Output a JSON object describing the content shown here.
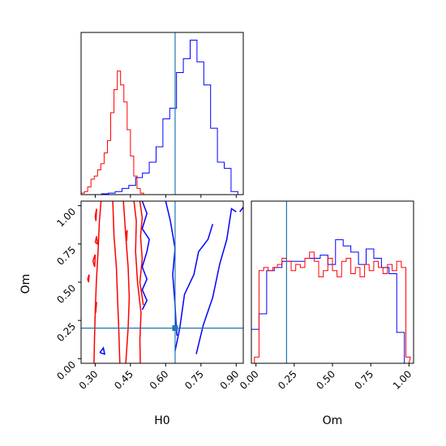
{
  "chart_data": {
    "type": "corner",
    "parameters": [
      "H0",
      "Om"
    ],
    "truths": {
      "H0": 0.64,
      "Om": 0.2
    },
    "colors": {
      "series_a": "#ff0000",
      "series_b": "#0000ff",
      "truth": "#1f77b4"
    },
    "panels": [
      {
        "id": "h0-hist",
        "type": "histogram",
        "xlim": [
          0.24,
          0.93
        ],
        "series": [
          {
            "color": "#ff0000",
            "x": [
              0.24,
              0.254,
              0.268,
              0.282,
              0.296,
              0.31,
              0.324,
              0.338,
              0.352,
              0.366,
              0.38,
              0.394,
              0.408,
              0.422,
              0.436,
              0.45,
              0.464,
              0.478,
              0.492
            ],
            "heights": [
              0.01,
              0.02,
              0.05,
              0.1,
              0.12,
              0.16,
              0.2,
              0.27,
              0.35,
              0.53,
              0.68,
              0.8,
              0.71,
              0.6,
              0.42,
              0.25,
              0.12,
              0.04,
              0.01
            ]
          },
          {
            "color": "#0000ff",
            "x": [
              0.327,
              0.356,
              0.385,
              0.414,
              0.443,
              0.472,
              0.501,
              0.53,
              0.559,
              0.588,
              0.617,
              0.646,
              0.675,
              0.704,
              0.733,
              0.762,
              0.791,
              0.82,
              0.849,
              0.878
            ],
            "heights": [
              0.005,
              0.01,
              0.02,
              0.04,
              0.06,
              0.11,
              0.14,
              0.21,
              0.31,
              0.49,
              0.56,
              0.79,
              0.88,
              1.0,
              0.86,
              0.71,
              0.43,
              0.21,
              0.17,
              0.02
            ]
          }
        ]
      },
      {
        "id": "om-hist",
        "type": "histogram",
        "xlim": [
          -0.03,
          1.03
        ],
        "series": [
          {
            "color": "#0000ff",
            "x": [
              -0.03,
              0.02,
              0.07,
              0.12,
              0.17,
              0.22,
              0.27,
              0.32,
              0.37,
              0.42,
              0.47,
              0.52,
              0.57,
              0.62,
              0.67,
              0.72,
              0.77,
              0.82,
              0.87,
              0.92,
              0.97
            ],
            "heights": [
              0.22,
              0.32,
              0.6,
              0.62,
              0.66,
              0.66,
              0.66,
              0.68,
              0.68,
              0.7,
              0.64,
              0.8,
              0.76,
              0.72,
              0.64,
              0.74,
              0.68,
              0.62,
              0.58,
              0.2
            ]
          },
          {
            "color": "#ff0000",
            "x": [
              -0.01,
              0.02,
              0.05,
              0.08,
              0.11,
              0.14,
              0.17,
              0.2,
              0.23,
              0.26,
              0.29,
              0.32,
              0.35,
              0.38,
              0.41,
              0.44,
              0.47,
              0.5,
              0.53,
              0.56,
              0.59,
              0.62,
              0.65,
              0.68,
              0.71,
              0.74,
              0.77,
              0.8,
              0.83,
              0.86,
              0.89,
              0.92,
              0.95,
              0.98,
              1.0
            ],
            "heights": [
              0.04,
              0.6,
              0.62,
              0.6,
              0.62,
              0.64,
              0.68,
              0.66,
              0.6,
              0.64,
              0.62,
              0.68,
              0.72,
              0.66,
              0.56,
              0.6,
              0.68,
              0.6,
              0.56,
              0.66,
              0.68,
              0.58,
              0.62,
              0.56,
              0.64,
              0.6,
              0.66,
              0.62,
              0.58,
              0.64,
              0.6,
              0.66,
              0.62,
              0.04
            ]
          }
        ]
      },
      {
        "id": "joint",
        "type": "contour",
        "xlim": [
          0.24,
          0.93
        ],
        "ylim": [
          -0.03,
          1.03
        ],
        "contours": [
          {
            "color": "#ff0000",
            "points": [
              [
                0.325,
                1.03
              ],
              [
                0.318,
                0.9
              ],
              [
                0.312,
                0.7
              ],
              [
                0.305,
                0.5
              ],
              [
                0.3,
                0.3
              ],
              [
                0.297,
                0.12
              ],
              [
                0.295,
                -0.03
              ]
            ]
          },
          {
            "color": "#ff0000",
            "points": [
              [
                0.375,
                1.03
              ],
              [
                0.38,
                0.8
              ],
              [
                0.39,
                0.6
              ],
              [
                0.395,
                0.4
              ],
              [
                0.4,
                0.2
              ],
              [
                0.405,
                -0.03
              ]
            ]
          },
          {
            "color": "#ff0000",
            "points": [
              [
                0.42,
                1.03
              ],
              [
                0.43,
                0.8
              ],
              [
                0.44,
                0.6
              ],
              [
                0.445,
                0.4
              ],
              [
                0.44,
                0.2
              ],
              [
                0.43,
                -0.03
              ]
            ]
          },
          {
            "color": "#ff0000",
            "points": [
              [
                0.465,
                1.03
              ],
              [
                0.475,
                0.9
              ],
              [
                0.472,
                0.7
              ],
              [
                0.48,
                0.5
              ],
              [
                0.495,
                0.3
              ],
              [
                0.49,
                0.12
              ],
              [
                0.492,
                -0.03
              ]
            ]
          },
          {
            "color": "#ff0000",
            "points": [
              [
                0.49,
                1.03
              ],
              [
                0.5,
                0.92
              ],
              [
                0.493,
                0.8
              ],
              [
                0.5,
                0.65
              ],
              [
                0.49,
                0.5
              ],
              [
                0.505,
                0.35
              ]
            ]
          },
          {
            "color": "#ff0000",
            "points": [
              [
                0.268,
                0.52
              ],
              [
                0.274,
                0.55
              ],
              [
                0.272,
                0.5
              ],
              [
                0.268,
                0.52
              ]
            ]
          },
          {
            "color": "#ff0000",
            "points": [
              [
                0.3,
                0.76
              ],
              [
                0.306,
                0.8
              ],
              [
                0.31,
                0.75
              ],
              [
                0.3,
                0.76
              ]
            ]
          },
          {
            "color": "#ff0000",
            "points": [
              [
                0.29,
                0.64
              ],
              [
                0.3,
                0.68
              ],
              [
                0.298,
                0.6
              ],
              [
                0.29,
                0.64
              ]
            ]
          },
          {
            "color": "#ff0000",
            "points": [
              [
                0.3,
                0.33
              ],
              [
                0.306,
                0.37
              ],
              [
                0.302,
                0.3
              ],
              [
                0.3,
                0.33
              ]
            ]
          },
          {
            "color": "#ff0000",
            "points": [
              [
                0.3,
                0.93
              ],
              [
                0.306,
                0.98
              ],
              [
                0.303,
                0.9
              ],
              [
                0.3,
                0.93
              ]
            ]
          },
          {
            "color": "#ff0000",
            "points": [
              [
                0.43,
                0.8
              ],
              [
                0.436,
                0.84
              ],
              [
                0.434,
                0.77
              ],
              [
                0.43,
                0.8
              ]
            ]
          },
          {
            "color": "#0000ff",
            "points": [
              [
                0.5,
                1.03
              ],
              [
                0.52,
                0.95
              ],
              [
                0.5,
                0.85
              ],
              [
                0.53,
                0.78
              ],
              [
                0.52,
                0.7
              ],
              [
                0.5,
                0.6
              ],
              [
                0.52,
                0.52
              ],
              [
                0.5,
                0.45
              ],
              [
                0.52,
                0.38
              ],
              [
                0.5,
                0.32
              ]
            ]
          },
          {
            "color": "#0000ff",
            "points": [
              [
                0.6,
                1.03
              ],
              [
                0.62,
                0.9
              ],
              [
                0.64,
                0.72
              ],
              [
                0.63,
                0.55
              ],
              [
                0.64,
                0.35
              ],
              [
                0.645,
                0.2
              ],
              [
                0.648,
                0.15
              ]
            ]
          },
          {
            "color": "#0000ff",
            "points": [
              [
                0.64,
                0.05
              ],
              [
                0.66,
                0.2
              ],
              [
                0.68,
                0.42
              ],
              [
                0.72,
                0.55
              ],
              [
                0.74,
                0.7
              ],
              [
                0.78,
                0.78
              ],
              [
                0.8,
                0.88
              ]
            ]
          },
          {
            "color": "#0000ff",
            "points": [
              [
                0.73,
                0.03
              ],
              [
                0.76,
                0.22
              ],
              [
                0.8,
                0.4
              ],
              [
                0.83,
                0.62
              ],
              [
                0.86,
                0.78
              ],
              [
                0.88,
                0.98
              ],
              [
                0.9,
                0.96
              ]
            ]
          },
          {
            "color": "#0000ff",
            "points": [
              [
                0.32,
                0.04
              ],
              [
                0.335,
                0.07
              ],
              [
                0.34,
                0.03
              ],
              [
                0.32,
                0.04
              ]
            ]
          },
          {
            "color": "#0000ff",
            "points": [
              [
                0.915,
                0.96
              ],
              [
                0.93,
                0.99
              ]
            ]
          }
        ]
      }
    ],
    "xlabels": [
      "H0",
      "Om"
    ],
    "ylabels": [
      "",
      "Om"
    ],
    "ticks": {
      "h0": [
        "0.30",
        "0.45",
        "0.60",
        "0.75",
        "0.90"
      ],
      "om": [
        "0.00",
        "0.25",
        "0.50",
        "0.75",
        "1.00"
      ]
    }
  }
}
